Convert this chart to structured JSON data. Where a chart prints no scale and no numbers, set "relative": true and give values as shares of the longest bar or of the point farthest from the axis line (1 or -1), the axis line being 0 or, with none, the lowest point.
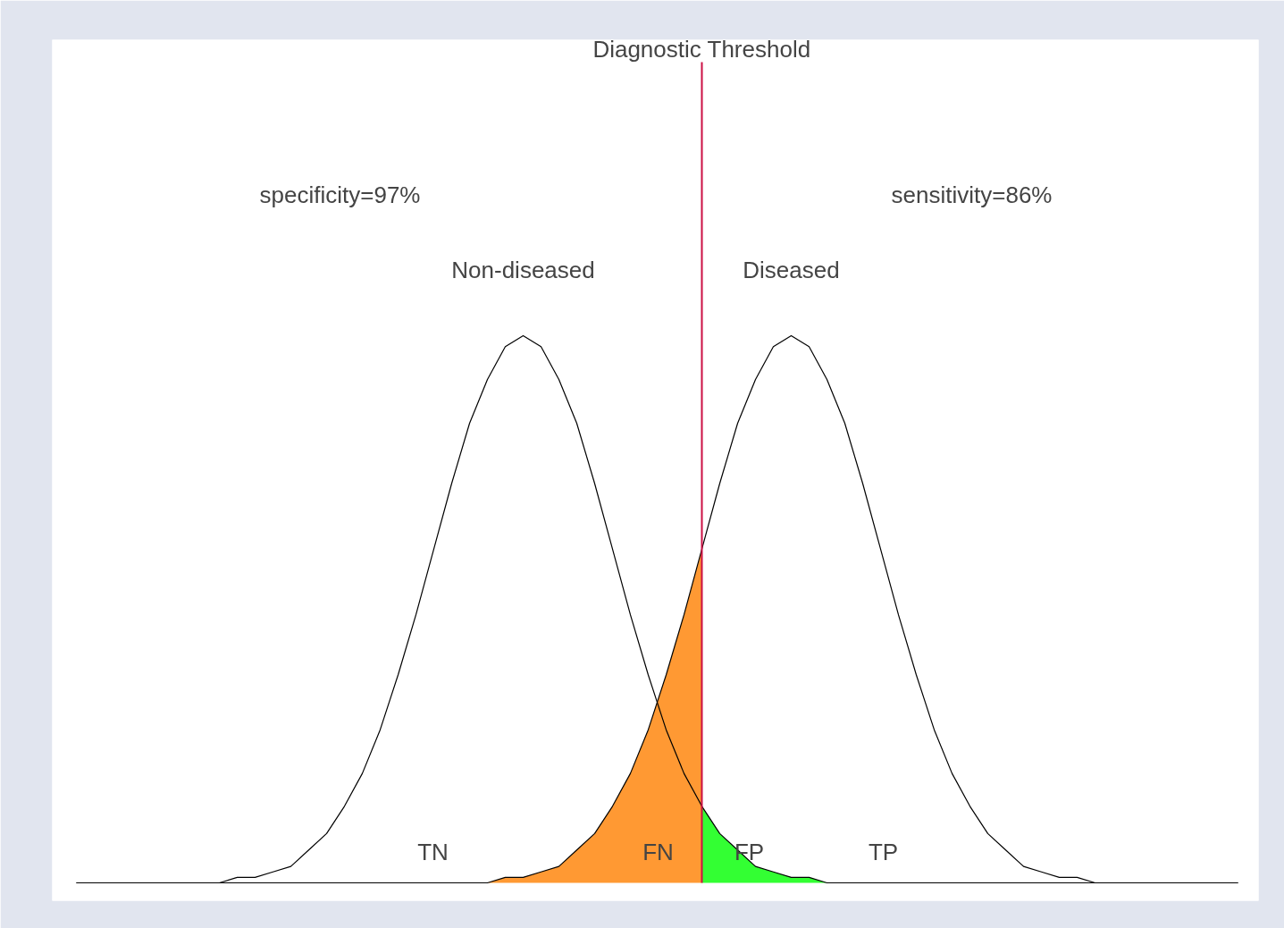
{
  "chart_data": {
    "type": "line",
    "relative": true,
    "title": "Diagnostic Threshold",
    "categories": [
      null,
      null,
      null,
      null,
      null,
      null,
      null,
      null,
      null,
      null,
      null,
      null,
      null,
      null,
      null,
      null,
      null,
      null,
      null,
      null,
      null,
      null,
      null,
      null,
      null,
      null,
      null,
      null,
      null,
      null,
      null,
      null,
      null,
      null,
      null,
      null,
      null,
      null,
      null,
      null,
      null,
      null,
      null,
      null,
      null,
      null,
      null,
      null,
      null,
      null,
      null,
      null,
      null,
      null,
      null,
      null,
      null,
      null,
      null,
      null,
      null,
      null,
      null,
      null,
      null,
      null
    ],
    "series": [
      {
        "name": "Non-diseased",
        "color": "#000000",
        "values": [
          0,
          0,
          0,
          0,
          0,
          0,
          0,
          0,
          0,
          0.01,
          0.01,
          0.02,
          0.03,
          0.06,
          0.09,
          0.14,
          0.2,
          0.28,
          0.38,
          0.49,
          0.61,
          0.73,
          0.84,
          0.92,
          0.98,
          1,
          0.98,
          0.92,
          0.84,
          0.73,
          0.61,
          0.49,
          0.38,
          0.28,
          0.2,
          0.14,
          0.09,
          0.06,
          0.03,
          0.02,
          0.01,
          0.01,
          0,
          0,
          0,
          0,
          0,
          0,
          0,
          0,
          0,
          0,
          0,
          0,
          0,
          0,
          0,
          0,
          0,
          0,
          0,
          0,
          0,
          0,
          0,
          0
        ]
      },
      {
        "name": "Diseased",
        "color": "#000000",
        "values": [
          0,
          0,
          0,
          0,
          0,
          0,
          0,
          0,
          0,
          0,
          0,
          0,
          0,
          0,
          0,
          0,
          0,
          0,
          0,
          0,
          0,
          0,
          0,
          0,
          0.01,
          0.01,
          0.02,
          0.03,
          0.06,
          0.09,
          0.14,
          0.2,
          0.28,
          0.38,
          0.49,
          0.61,
          0.73,
          0.84,
          0.92,
          0.98,
          1,
          0.98,
          0.92,
          0.84,
          0.73,
          0.61,
          0.49,
          0.38,
          0.28,
          0.2,
          0.14,
          0.09,
          0.06,
          0.03,
          0.02,
          0.01,
          0.01,
          0,
          0,
          0,
          0,
          0,
          0,
          0,
          0,
          0
        ]
      },
      {
        "type": "area",
        "color": "#ff9933",
        "values": [
          0,
          0,
          0,
          0,
          0,
          0,
          0,
          0,
          0,
          0,
          0,
          0,
          0,
          0,
          0,
          0,
          0,
          0,
          0,
          0,
          0,
          0,
          0,
          0,
          0.01,
          0.01,
          0.02,
          0.03,
          0.06,
          0.09,
          0.14,
          0.2,
          0.28,
          0.38,
          0.49,
          0.61,
          null,
          null,
          null,
          null,
          null,
          null,
          null,
          null,
          null,
          null,
          null,
          null,
          null,
          null,
          null,
          null,
          null,
          null,
          null,
          null,
          null,
          null,
          null,
          null,
          null,
          null,
          null,
          null,
          null,
          null
        ]
      },
      {
        "type": "area",
        "color": "#33ff33",
        "values": [
          null,
          null,
          null,
          null,
          null,
          null,
          null,
          null,
          null,
          null,
          null,
          null,
          null,
          null,
          null,
          null,
          null,
          null,
          null,
          null,
          null,
          null,
          null,
          null,
          null,
          null,
          null,
          null,
          null,
          null,
          null,
          null,
          null,
          null,
          null,
          0.14,
          0.09,
          0.06,
          0.03,
          0.02,
          0.01,
          0.01,
          0,
          0,
          0,
          0,
          0,
          0,
          0,
          0,
          0,
          0,
          0,
          0,
          0,
          0,
          0,
          0,
          0,
          0,
          0,
          0,
          0,
          0,
          0,
          0
        ]
      }
    ],
    "ref_lines": [
      {
        "axis": "x",
        "color": "#cc1144"
      }
    ],
    "annotations": [
      "specificity=97%",
      "sensitivity=86%",
      "TN",
      "FN",
      "FP",
      "TP"
    ]
  }
}
